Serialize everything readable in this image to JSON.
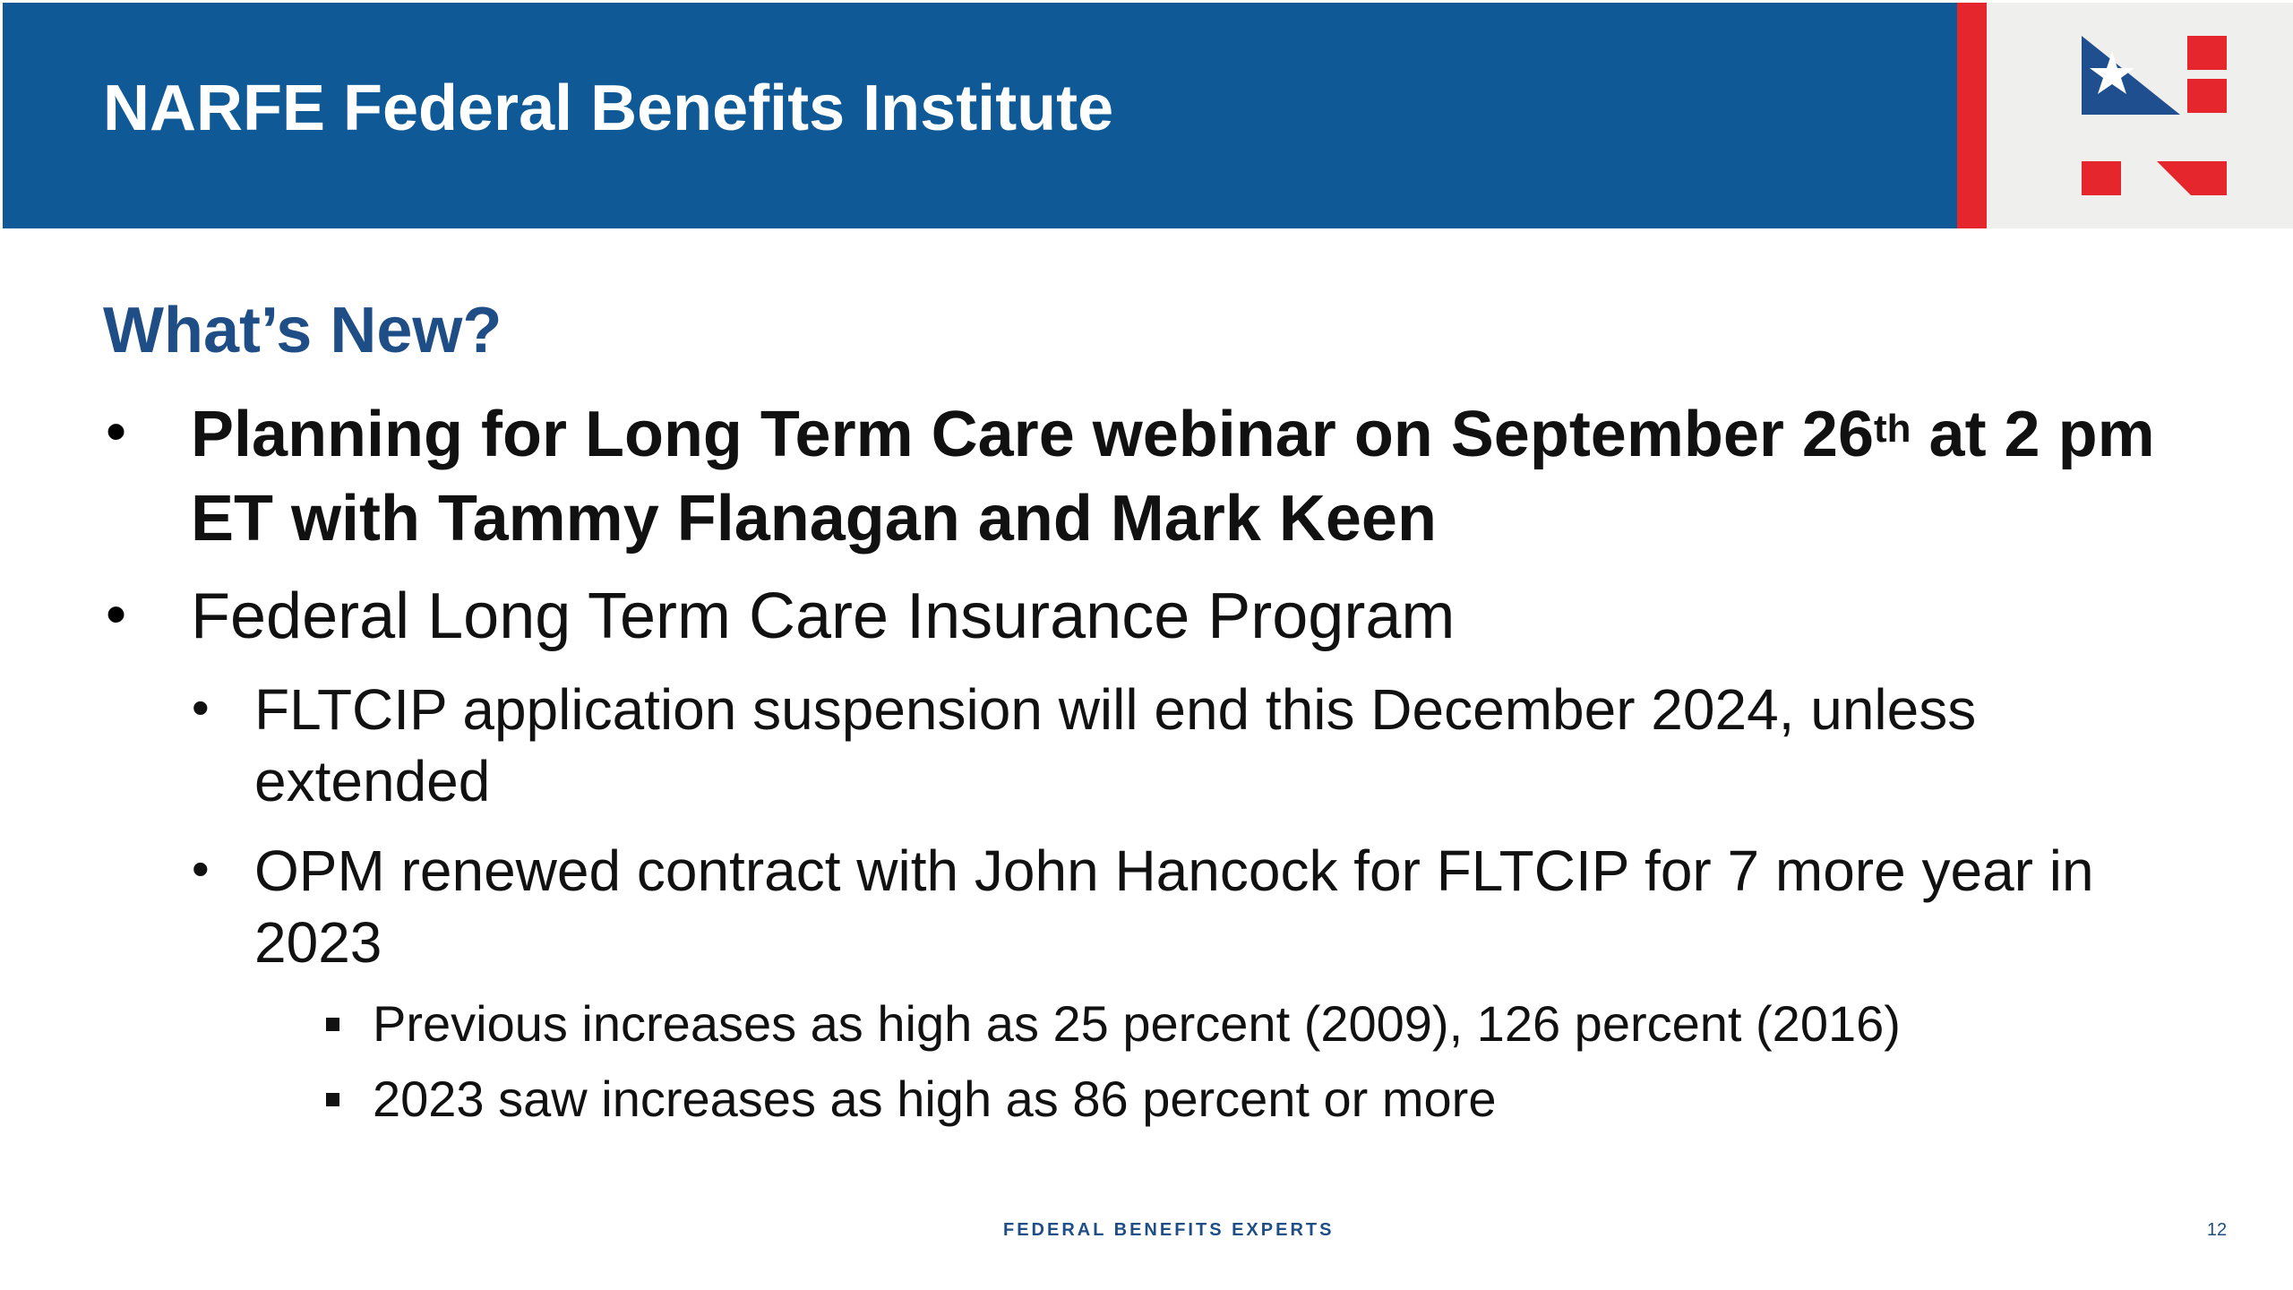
{
  "header": {
    "title": "NARFE Federal Benefits Institute",
    "logo_name": "narfe-n-logo"
  },
  "section": {
    "title": "What’s New?"
  },
  "bullets": [
    {
      "text_before_sup": "Planning for Long Term Care webinar on September 26",
      "sup": "th",
      "text_after_sup": " at 2 pm ET with Tammy Flanagan and Mark Keen"
    },
    {
      "text": "Federal Long Term Care Insurance Program",
      "sub_bullets": [
        {
          "text": "FLTCIP application suspension will end this December 2024, unless extended"
        },
        {
          "text": "OPM renewed contract with John Hancock for FLTCIP for 7 more year in 2023",
          "sub_bullets": [
            {
              "text": "Previous increases as high as 25 percent (2009), 126 percent (2016)"
            },
            {
              "text": "2023 saw increases as high as 86 percent or more"
            }
          ]
        }
      ]
    }
  ],
  "footer": {
    "text": "FEDERAL BENEFITS EXPERTS",
    "page_number": "12"
  },
  "colors": {
    "header_blue": "#0f5a96",
    "accent_red": "#e5272d",
    "title_blue": "#1f4e86",
    "logo_blue": "#1f4f8e"
  }
}
